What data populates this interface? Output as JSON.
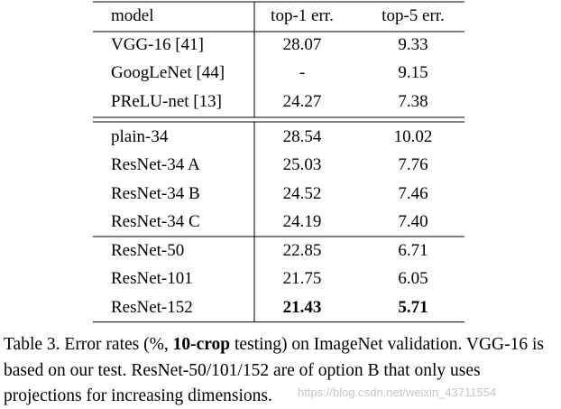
{
  "table": {
    "header": [
      "model",
      "top-1 err.",
      "top-5 err."
    ],
    "groups": [
      [
        [
          "VGG-16 [41]",
          "28.07",
          "9.33"
        ],
        [
          "GoogLeNet [44]",
          "-",
          "9.15"
        ],
        [
          "PReLU-net [13]",
          "24.27",
          "7.38"
        ]
      ],
      [
        [
          "plain-34",
          "28.54",
          "10.02"
        ],
        [
          "ResNet-34 A",
          "25.03",
          "7.76"
        ],
        [
          "ResNet-34 B",
          "24.52",
          "7.46"
        ],
        [
          "ResNet-34 C",
          "24.19",
          "7.40"
        ]
      ],
      [
        [
          "ResNet-50",
          "22.85",
          "6.71"
        ],
        [
          "ResNet-101",
          "21.75",
          "6.05"
        ],
        [
          "ResNet-152",
          "21.43",
          "5.71"
        ]
      ]
    ]
  },
  "caption": {
    "parts": [
      "Table 3. Error rates (%, ",
      "10-crop",
      " testing) on ImageNet validation. VGG-16 is based on our test. ResNet-50/101/152 are of option B that only uses projections for increasing dimensions."
    ]
  },
  "watermark": "https://blog.csdn.net/weixin_43711554"
}
